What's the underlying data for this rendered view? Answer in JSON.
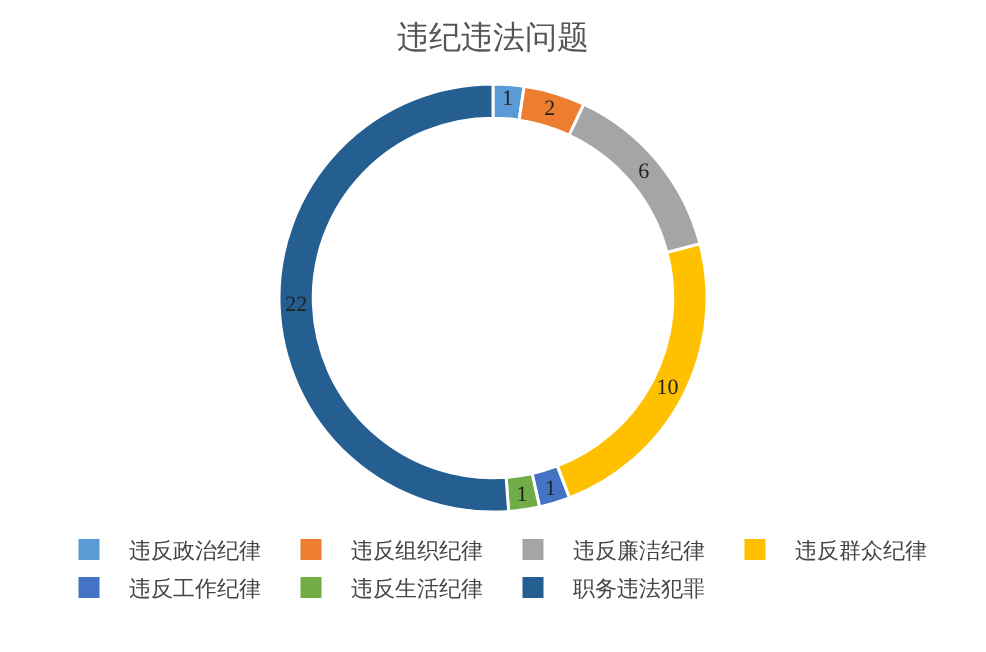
{
  "chart_data": {
    "type": "donut",
    "title": "违纪违法问题",
    "categories": [
      "违反政治纪律",
      "违反组织纪律",
      "违反廉洁纪律",
      "违反群众纪律",
      "违反工作纪律",
      "违反生活纪律",
      "职务违法犯罪"
    ],
    "values": [
      1,
      2,
      6,
      10,
      1,
      1,
      22
    ],
    "colors": [
      "#5b9bd5",
      "#ed7d31",
      "#a5a5a5",
      "#ffc000",
      "#4472c4",
      "#70ad47",
      "#255e91"
    ],
    "data_labels": true,
    "legend": "bottom"
  }
}
